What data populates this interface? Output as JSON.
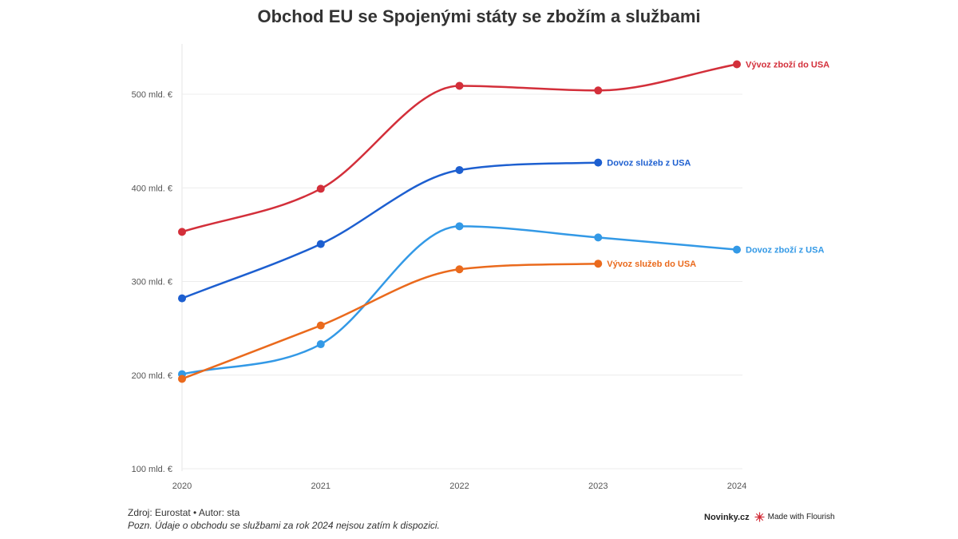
{
  "title": "Obchod EU se Spojenými státy se zbožím a službami",
  "footer": {
    "source": "Zdroj: Eurostat • Autor: sta",
    "note": "Pozn. Údaje o obchodu se službami za rok 2024 nejsou zatím k dispozici."
  },
  "branding": {
    "publisher": "Novinky.cz",
    "made_with": "Made with Flourish",
    "flourish_icon": "flourish-logo-icon"
  },
  "chart_data": {
    "type": "line",
    "title": "Obchod EU se Spojenými státy se zbožím a službami",
    "xlabel": "",
    "ylabel": "",
    "x": [
      "2020",
      "2021",
      "2022",
      "2023",
      "2024"
    ],
    "ylim": [
      100,
      550
    ],
    "yticks": [
      100,
      200,
      300,
      400,
      500
    ],
    "ytick_labels": [
      "100 mld. €",
      "200 mld. €",
      "300 mld. €",
      "400 mld. €",
      "500 mld. €"
    ],
    "grid": true,
    "legend": "direct labels at line ends",
    "series": [
      {
        "name": "Vývoz zboží do USA",
        "color": "#d32f3a",
        "values": [
          353,
          399,
          509,
          504,
          532
        ]
      },
      {
        "name": "Dovoz služeb z USA",
        "color": "#1d5fd0",
        "values": [
          282,
          340,
          419,
          427,
          null
        ]
      },
      {
        "name": "Dovoz zboží z USA",
        "color": "#3399e6",
        "values": [
          201,
          233,
          359,
          347,
          334
        ]
      },
      {
        "name": "Vývoz služeb do USA",
        "color": "#ea6a1d",
        "values": [
          196,
          253,
          313,
          319,
          null
        ]
      }
    ]
  }
}
